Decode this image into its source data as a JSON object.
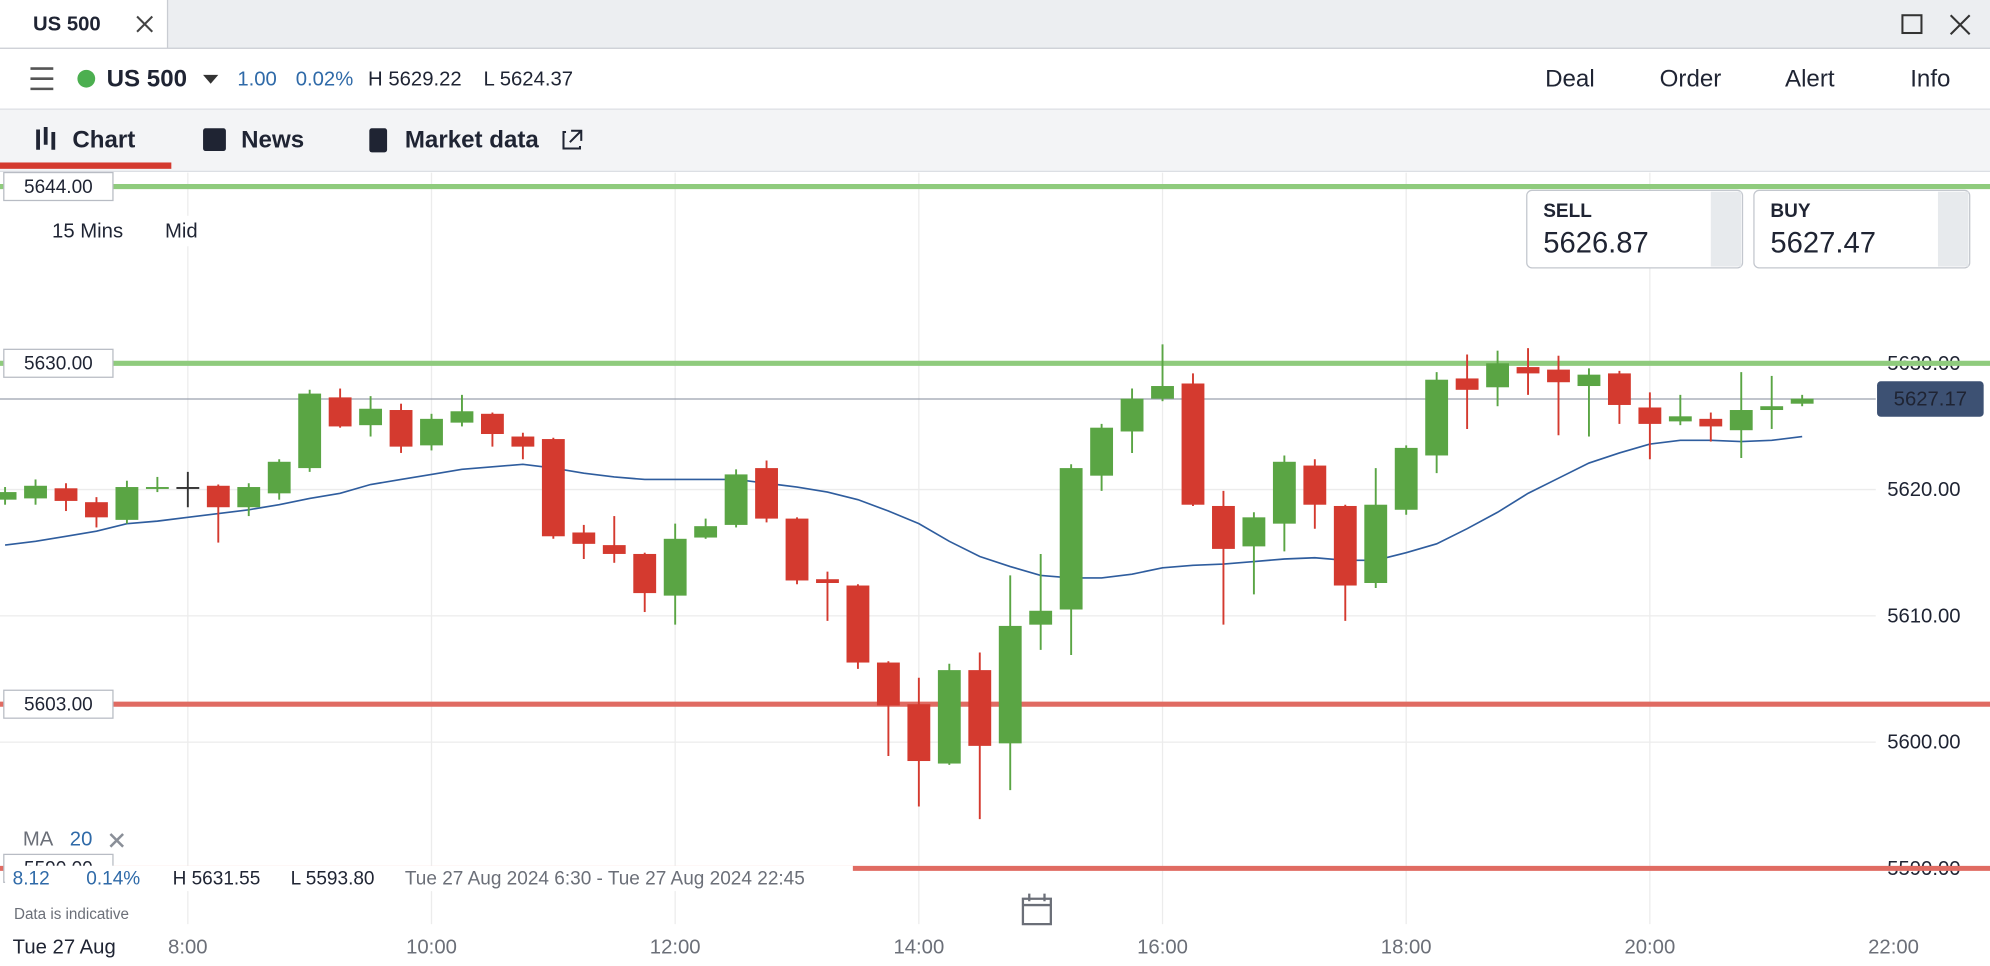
{
  "window": {
    "tab": "US 500"
  },
  "toolbar": {
    "instrument": "US 500",
    "change": "1.00",
    "change_pct": "0.02%",
    "high": "H 5629.22",
    "low": "L 5624.37",
    "menu": [
      "Deal",
      "Order",
      "Alert",
      "Info"
    ]
  },
  "tabs": [
    "Chart",
    "News",
    "Market data"
  ],
  "chart_data": {
    "type": "candlestick",
    "interval": "15 Mins",
    "price_type": "Mid",
    "sell": {
      "label": "SELL",
      "price": "5626.87"
    },
    "buy": {
      "label": "BUY",
      "price": "5627.47"
    },
    "colors": {
      "up": "#5aa544",
      "down": "#d43a2f",
      "ma": "#2f5d9e"
    },
    "grid": true,
    "ylim": [
      5588.6,
      5645.1
    ],
    "yticks": [
      {
        "value": 5590,
        "label": "5590.00"
      },
      {
        "value": 5600,
        "label": "5600.00"
      },
      {
        "value": 5610,
        "label": "5610.00"
      },
      {
        "value": 5620,
        "label": "5620.00"
      },
      {
        "value": 5630,
        "label": "5630.00"
      }
    ],
    "xticks": [
      "8:00",
      "10:00",
      "12:00",
      "14:00",
      "16:00",
      "18:00",
      "20:00",
      "22:00"
    ],
    "date_label": "Tue 27 Aug",
    "candles": {
      "x": [
        "6:30",
        "6:45",
        "7:00",
        "7:15",
        "7:30",
        "7:45",
        "8:00",
        "8:15",
        "8:30",
        "8:45",
        "9:00",
        "9:15",
        "9:30",
        "9:45",
        "10:00",
        "10:15",
        "10:30",
        "10:45",
        "11:00",
        "11:15",
        "11:30",
        "11:45",
        "12:00",
        "12:15",
        "12:30",
        "12:45",
        "13:00",
        "13:15",
        "13:30",
        "13:45",
        "14:00",
        "14:15",
        "14:30",
        "14:45",
        "15:00",
        "15:15",
        "15:30",
        "15:45",
        "16:00",
        "16:15",
        "16:30",
        "16:45",
        "17:00",
        "17:15",
        "17:30",
        "17:45",
        "18:00",
        "18:15",
        "18:30",
        "18:45",
        "19:00",
        "19:15",
        "19:30",
        "19:45",
        "20:00",
        "20:15",
        "20:30",
        "20:45",
        "21:00",
        "21:15"
      ],
      "open": [
        5619.2,
        5619.3,
        5620.1,
        5619.0,
        5617.6,
        5620.1,
        5620.2,
        5620.3,
        5618.6,
        5619.7,
        5621.7,
        5627.3,
        5625.1,
        5626.3,
        5623.5,
        5625.3,
        5626.0,
        5624.2,
        5624.0,
        5616.6,
        5615.6,
        5614.9,
        5611.6,
        5616.2,
        5617.2,
        5621.7,
        5617.7,
        5612.9,
        5612.4,
        5606.3,
        5603.0,
        5598.3,
        5605.7,
        5599.9,
        5609.3,
        5610.5,
        5621.1,
        5624.6,
        5627.2,
        5628.4,
        5618.7,
        5615.5,
        5617.3,
        5621.9,
        5618.7,
        5612.6,
        5618.4,
        5622.7,
        5628.8,
        5628.1,
        5629.7,
        5629.5,
        5628.2,
        5629.2,
        5626.5,
        5625.4,
        5625.6,
        5624.7,
        5626.3,
        5626.8
      ],
      "high": [
        5620.2,
        5620.8,
        5620.5,
        5619.4,
        5620.7,
        5621.0,
        5621.4,
        5620.4,
        5620.5,
        5622.4,
        5627.9,
        5628.0,
        5627.4,
        5626.8,
        5626.0,
        5627.5,
        5626.1,
        5624.5,
        5624.1,
        5617.2,
        5617.9,
        5615.0,
        5617.3,
        5617.7,
        5621.6,
        5622.3,
        5617.8,
        5613.5,
        5612.5,
        5606.4,
        5605.1,
        5606.2,
        5607.1,
        5613.2,
        5614.9,
        5622.0,
        5625.2,
        5628.0,
        5631.5,
        5629.2,
        5619.9,
        5618.2,
        5622.7,
        5622.4,
        5618.8,
        5621.7,
        5623.5,
        5629.3,
        5630.7,
        5631.0,
        5631.2,
        5630.6,
        5629.6,
        5629.4,
        5627.7,
        5627.5,
        5626.1,
        5629.3,
        5629.0,
        5627.5
      ],
      "low": [
        5618.8,
        5618.8,
        5618.3,
        5617.0,
        5617.3,
        5619.8,
        5618.6,
        5615.8,
        5617.9,
        5619.2,
        5621.4,
        5624.9,
        5624.2,
        5622.9,
        5623.1,
        5625.0,
        5623.4,
        5622.4,
        5616.1,
        5614.5,
        5614.2,
        5610.3,
        5609.3,
        5616.1,
        5617.0,
        5617.4,
        5612.5,
        5609.6,
        5605.8,
        5598.9,
        5594.9,
        5598.2,
        5593.9,
        5596.2,
        5607.3,
        5606.9,
        5619.9,
        5622.9,
        5627.0,
        5618.7,
        5609.3,
        5611.7,
        5615.1,
        5616.9,
        5609.6,
        5612.2,
        5618.0,
        5621.3,
        5624.8,
        5626.6,
        5627.5,
        5624.3,
        5624.2,
        5625.2,
        5622.4,
        5625.1,
        5623.8,
        5622.5,
        5624.8,
        5626.6
      ],
      "close": [
        5619.8,
        5620.3,
        5619.1,
        5617.8,
        5620.2,
        5620.2,
        5620.2,
        5618.6,
        5620.2,
        5622.2,
        5627.6,
        5625.0,
        5626.4,
        5623.4,
        5625.6,
        5626.2,
        5624.4,
        5623.4,
        5616.3,
        5615.7,
        5614.9,
        5611.8,
        5616.1,
        5617.1,
        5621.2,
        5617.7,
        5612.8,
        5612.6,
        5606.3,
        5602.9,
        5598.5,
        5605.7,
        5599.7,
        5609.2,
        5610.4,
        5621.7,
        5624.9,
        5627.2,
        5628.2,
        5618.8,
        5615.3,
        5617.8,
        5622.2,
        5618.8,
        5612.4,
        5618.8,
        5623.3,
        5628.7,
        5627.9,
        5630.0,
        5629.2,
        5628.5,
        5629.1,
        5626.7,
        5625.2,
        5625.8,
        5625.0,
        5626.3,
        5626.6,
        5627.2
      ]
    },
    "ma": {
      "label": "MA",
      "period": 20,
      "values": [
        5615.6,
        5615.9,
        5616.3,
        5616.7,
        5617.3,
        5617.5,
        5617.8,
        5618.1,
        5618.4,
        5618.8,
        5619.3,
        5619.7,
        5620.4,
        5620.8,
        5621.2,
        5621.6,
        5621.8,
        5622.0,
        5621.7,
        5621.3,
        5621.0,
        5620.8,
        5620.8,
        5620.8,
        5620.8,
        5620.5,
        5620.2,
        5619.8,
        5619.2,
        5618.3,
        5617.3,
        5615.9,
        5614.7,
        5613.9,
        5613.2,
        5613.0,
        5613.0,
        5613.3,
        5613.8,
        5614.0,
        5614.1,
        5614.3,
        5614.5,
        5614.6,
        5614.4,
        5614.4,
        5615.0,
        5615.7,
        5616.9,
        5618.2,
        5619.7,
        5620.9,
        5622.1,
        5622.9,
        5623.6,
        5623.9,
        5623.9,
        5623.8,
        5623.9,
        5624.2
      ]
    },
    "levels": [
      {
        "value": 5644,
        "label": "5644.00",
        "color": "#8fcb7d"
      },
      {
        "value": 5630,
        "label": "5630.00",
        "color": "#8fcb7d"
      },
      {
        "value": 5603,
        "label": "5603.00",
        "color": "#e06b62"
      },
      {
        "value": 5590,
        "label": "5590.00",
        "color": "#e06b62"
      }
    ],
    "current_price": {
      "value": 5627.17,
      "label": "5627.17"
    },
    "summary": {
      "change": "8.12",
      "change_pct": "0.14%",
      "high": "H 5631.55",
      "low": "L 5593.80",
      "range": "Tue 27 Aug 2024 6:30 - Tue 27 Aug 2024 22:45"
    },
    "note": "Data is indicative"
  }
}
